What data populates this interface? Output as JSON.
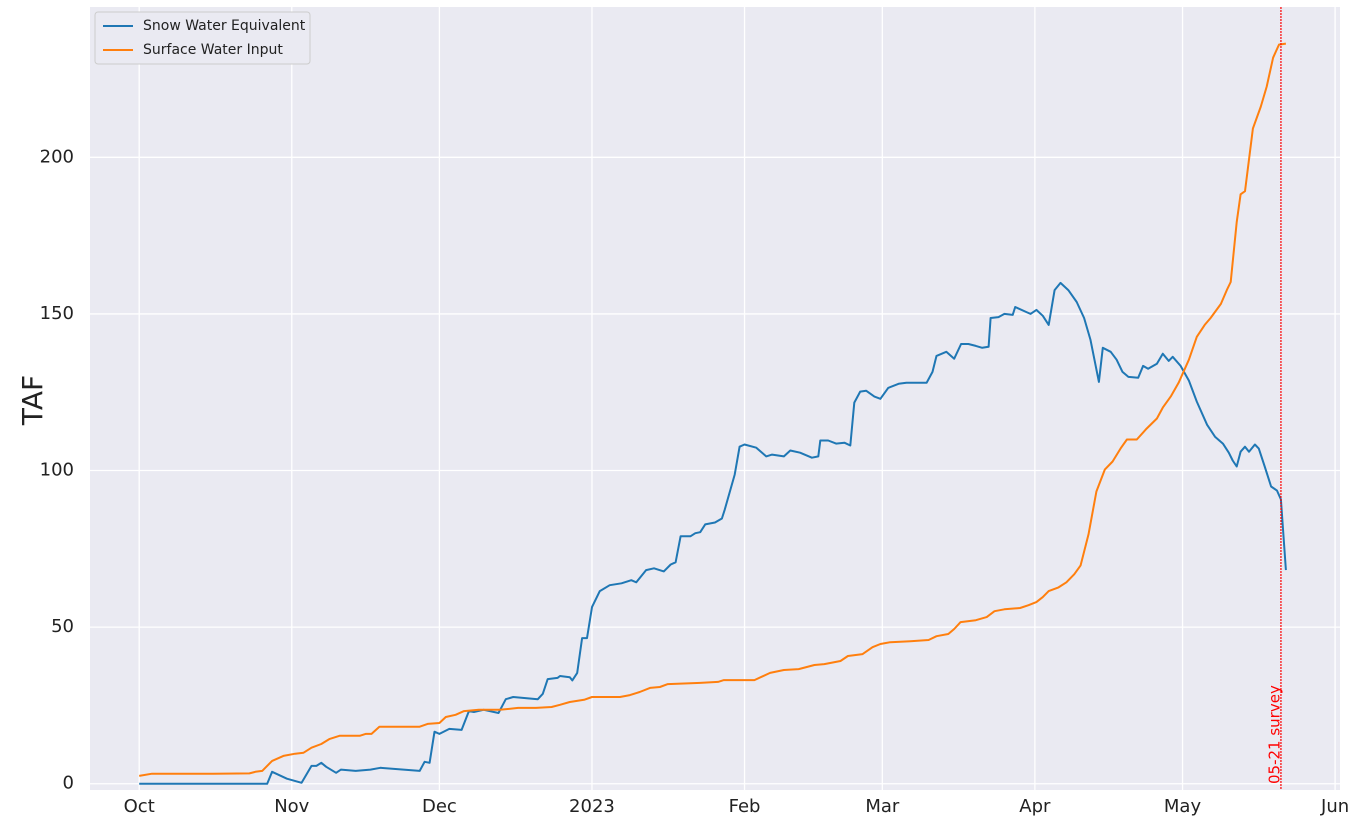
{
  "chart_data": {
    "type": "line",
    "ylabel": "TAF",
    "xlim": [
      -10,
      244
    ],
    "ylim": [
      -2,
      248
    ],
    "xticks": [
      {
        "value": 0,
        "label": "Oct"
      },
      {
        "value": 31,
        "label": "Nov"
      },
      {
        "value": 61,
        "label": "Dec"
      },
      {
        "value": 92,
        "label": "2023"
      },
      {
        "value": 123,
        "label": "Feb"
      },
      {
        "value": 151,
        "label": "Mar"
      },
      {
        "value": 182,
        "label": "Apr"
      },
      {
        "value": 212,
        "label": "May"
      },
      {
        "value": 243,
        "label": "Jun"
      }
    ],
    "yticks": [
      0,
      50,
      100,
      150,
      200
    ],
    "grid": true,
    "legend": "upper left",
    "vline": {
      "x": 232,
      "color": "red",
      "label": "05-21 survey"
    },
    "series": [
      {
        "name": "Snow Water Equivalent",
        "color": "#1f77b4",
        "x": [
          0,
          26,
          27,
          30,
          33,
          35,
          36,
          37,
          38,
          40,
          41,
          44,
          47,
          49,
          57,
          58,
          59,
          60,
          61,
          63,
          65.5,
          67,
          68,
          70,
          73,
          74.5,
          76,
          81,
          82,
          83,
          85,
          85.5,
          87.5,
          88,
          89,
          90,
          91,
          92,
          93.6,
          95.6,
          98,
          100,
          101,
          103,
          104.6,
          106.6,
          108,
          109,
          110,
          112,
          113,
          114,
          115,
          117,
          118.4,
          119,
          121,
          122,
          123,
          125.4,
          127.4,
          128.6,
          131,
          132.3,
          134.3,
          136.7,
          138,
          138.4,
          140,
          141.6,
          143.3,
          144.5,
          145.3,
          146.5,
          147.7,
          149.4,
          150.6,
          152.2,
          154.3,
          155.9,
          160,
          161.2,
          162,
          164,
          165.6,
          167,
          168.5,
          170,
          171.3,
          172.6,
          173,
          174.6,
          175.8,
          177.5,
          178,
          180.3,
          181.1,
          182.3,
          183.6,
          184.8,
          186,
          187.2,
          188.8,
          190.5,
          192,
          193.3,
          195,
          195.8,
          197.4,
          198.6,
          199.8,
          201,
          203,
          204,
          205,
          206.8,
          208,
          209.2,
          210,
          211.6,
          213.3,
          214.9,
          217,
          218.6,
          220.2,
          221.4,
          222.2,
          223,
          223.8,
          224.7,
          225.5,
          226.7,
          227.5,
          228.7,
          230,
          231.2,
          232,
          233
        ],
        "values": [
          0,
          0,
          3.8,
          1.6,
          0.3,
          5.7,
          5.7,
          6.7,
          5.4,
          3.5,
          4.5,
          4.1,
          4.5,
          5.1,
          4.1,
          7,
          6.7,
          16.6,
          15.9,
          17.5,
          17.2,
          23.2,
          22.9,
          23.6,
          22.6,
          27,
          27.7,
          27,
          28.7,
          33.4,
          33.8,
          34.4,
          34,
          33,
          35.4,
          46.5,
          46.5,
          56.4,
          61.5,
          63.4,
          64,
          65,
          64.3,
          68.2,
          68.8,
          67.8,
          70,
          70.7,
          79,
          79,
          80,
          80.3,
          82.8,
          83.4,
          84.7,
          87.6,
          98.7,
          107.6,
          108.3,
          107.3,
          104.5,
          105.1,
          104.5,
          106.4,
          105.7,
          104.1,
          104.5,
          109.6,
          109.6,
          108.6,
          108.9,
          108,
          121.7,
          125.2,
          125.5,
          123.6,
          122.9,
          126.4,
          127.7,
          128,
          128,
          131.5,
          136.6,
          137.9,
          135.7,
          140.4,
          140.4,
          139.8,
          139.2,
          139.5,
          148.7,
          149,
          150,
          149.7,
          152.2,
          150.6,
          150,
          151.3,
          149.4,
          146.5,
          157.6,
          159.9,
          157.6,
          153.8,
          148.7,
          141.7,
          128.3,
          139.2,
          137.9,
          135.4,
          131.5,
          129.9,
          129.6,
          133.4,
          132.5,
          134.1,
          137.3,
          135,
          136.3,
          133.4,
          128.7,
          122,
          114.6,
          110.8,
          108.6,
          105.7,
          103.2,
          101.3,
          106,
          107.6,
          106,
          108.3,
          107,
          101.3,
          94.9,
          93.6,
          90.8,
          68.2
        ]
      },
      {
        "name": "Surface Water Input",
        "color": "#ff7f0e",
        "x": [
          0,
          2.6,
          8,
          15,
          22.4,
          23.6,
          25,
          27,
          29.3,
          31.7,
          33.4,
          35,
          37,
          38.7,
          40.7,
          44.8,
          46,
          47.2,
          48.8,
          57,
          58.6,
          61,
          62.3,
          64.3,
          66,
          69,
          73.3,
          77,
          80.6,
          83.8,
          85.5,
          87.5,
          90.4,
          92,
          97.7,
          99.7,
          101.7,
          103.8,
          105.8,
          107.4,
          114,
          117.6,
          118.8,
          125,
          128.2,
          131,
          134,
          137.2,
          139.2,
          142.5,
          144,
          147,
          149,
          150.6,
          152.6,
          156.7,
          160.4,
          162,
          164.4,
          165.6,
          166.9,
          170,
          172.2,
          173.8,
          175.8,
          179,
          180.7,
          182.3,
          183.6,
          184.8,
          186.8,
          188.4,
          190,
          191.3,
          192.9,
          194.5,
          196.2,
          197.8,
          199.4,
          200.7,
          202.7,
          204.7,
          206.8,
          208,
          209.6,
          211.2,
          213.3,
          214.9,
          216.5,
          217.7,
          219.8,
          221,
          221.8,
          223,
          223.8,
          224.7,
          226.3,
          227.9,
          229.1,
          230.4,
          231.6,
          233
        ],
        "values": [
          2.5,
          3.2,
          3.2,
          3.2,
          3.3,
          3.8,
          4.1,
          7.3,
          8.9,
          9.6,
          9.9,
          11.5,
          12.7,
          14.3,
          15.3,
          15.3,
          15.9,
          15.9,
          18.2,
          18.2,
          19.1,
          19.4,
          21.3,
          22,
          23.2,
          23.6,
          23.6,
          24.2,
          24.2,
          24.5,
          25.2,
          26.1,
          26.8,
          27.7,
          27.7,
          28.3,
          29.3,
          30.6,
          30.9,
          31.8,
          32.2,
          32.5,
          33.1,
          33.1,
          35.4,
          36.3,
          36.6,
          37.9,
          38.2,
          39.2,
          40.8,
          41.4,
          43.6,
          44.6,
          45.2,
          45.5,
          45.9,
          47.1,
          47.8,
          49.4,
          51.6,
          52.2,
          53.2,
          55.1,
          55.7,
          56.1,
          57,
          58,
          59.6,
          61.5,
          62.7,
          64.3,
          66.9,
          69.7,
          79.6,
          93.3,
          100.3,
          102.9,
          107,
          109.9,
          109.9,
          113.4,
          116.6,
          120.1,
          123.6,
          128,
          135.4,
          142.7,
          146.5,
          148.7,
          153.2,
          157.6,
          160.2,
          179.3,
          188.2,
          189.2,
          209.2,
          216.2,
          222.6,
          231.8,
          236,
          236.3
        ]
      }
    ]
  }
}
